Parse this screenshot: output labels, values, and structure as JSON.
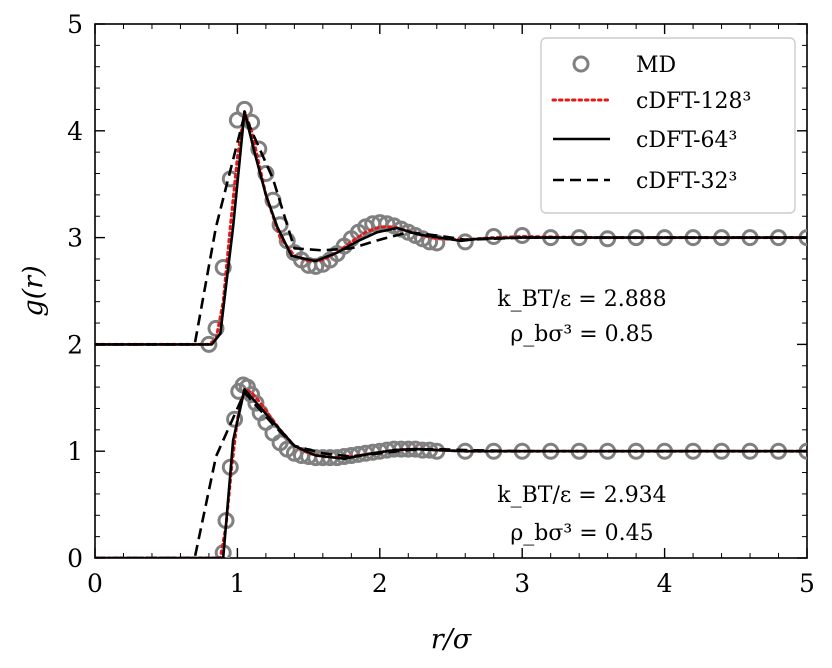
{
  "chart_data": {
    "type": "line",
    "xlabel": "r/σ",
    "ylabel": "g(r)",
    "xlim": [
      0,
      5
    ],
    "ylim": [
      0,
      5
    ],
    "xticks": [
      "0",
      "1",
      "2",
      "3",
      "4",
      "5"
    ],
    "yticks": [
      "0",
      "1",
      "2",
      "3",
      "4",
      "5"
    ],
    "grid": false,
    "legend_position": "top-right",
    "colors": {
      "md": "#808080",
      "cdft_128": "#e31a1c",
      "cdft_64": "#000000",
      "cdft_32": "#000000"
    },
    "legend": [
      {
        "key": "md",
        "label": "MD",
        "style": "circle-marker"
      },
      {
        "key": "cdft_128",
        "label": "cDFT-128³",
        "style": "dotted"
      },
      {
        "key": "cdft_64",
        "label": "cDFT-64³",
        "style": "solid"
      },
      {
        "key": "cdft_32",
        "label": "cDFT-32³",
        "style": "dashed"
      }
    ],
    "annotations": [
      {
        "line1": "k_BT/ε = 2.888",
        "line2": "ρ_bσ³ = 0.85"
      },
      {
        "line1": "k_BT/ε = 2.934",
        "line2": "ρ_bσ³ = 0.45"
      }
    ],
    "panels": [
      {
        "name": "upper (offset +2)",
        "offset": 2,
        "md": {
          "x": [
            0.8,
            0.85,
            0.9,
            0.95,
            1.0,
            1.05,
            1.1,
            1.15,
            1.2,
            1.25,
            1.3,
            1.35,
            1.4,
            1.45,
            1.5,
            1.55,
            1.6,
            1.65,
            1.7,
            1.75,
            1.8,
            1.85,
            1.9,
            1.95,
            2.0,
            2.05,
            2.1,
            2.15,
            2.2,
            2.25,
            2.3,
            2.35,
            2.4,
            2.6,
            2.8,
            3.0,
            3.2,
            3.4,
            3.6,
            3.8,
            4.0,
            4.2,
            4.4,
            4.6,
            4.8,
            5.0
          ],
          "y": [
            2.0,
            2.15,
            2.72,
            3.55,
            4.1,
            4.2,
            4.08,
            3.83,
            3.6,
            3.35,
            3.12,
            2.97,
            2.86,
            2.79,
            2.74,
            2.73,
            2.75,
            2.79,
            2.85,
            2.92,
            2.99,
            3.05,
            3.1,
            3.13,
            3.14,
            3.13,
            3.11,
            3.08,
            3.05,
            3.02,
            2.99,
            2.96,
            2.95,
            2.96,
            3.01,
            3.02,
            3.0,
            3.0,
            2.99,
            3.0,
            3.0,
            3.0,
            3.0,
            3.0,
            3.0,
            3.0
          ]
        },
        "cdft_128": {
          "x": [
            0,
            0.8,
            0.85,
            0.9,
            0.95,
            1.0,
            1.05,
            1.1,
            1.2,
            1.3,
            1.4,
            1.5,
            1.6,
            1.7,
            1.8,
            1.9,
            2.0,
            2.1,
            2.2,
            2.3,
            2.4,
            2.6,
            2.8,
            3.0,
            3.5,
            4.0,
            5.0
          ],
          "y": [
            2.0,
            2.0,
            2.05,
            2.4,
            3.1,
            3.75,
            4.18,
            4.0,
            3.4,
            3.0,
            2.83,
            2.78,
            2.79,
            2.86,
            2.96,
            3.05,
            3.1,
            3.1,
            3.06,
            3.02,
            2.99,
            2.98,
            3.0,
            3.01,
            3.0,
            3.0,
            3.0
          ]
        },
        "cdft_64": {
          "x": [
            0,
            0.82,
            0.88,
            0.97,
            1.05,
            1.12,
            1.2,
            1.28,
            1.38,
            1.55,
            1.7,
            1.85,
            1.98,
            2.12,
            2.27,
            2.42,
            2.57,
            2.7,
            3.0,
            3.5,
            4.0,
            5.0
          ],
          "y": [
            2.0,
            2.0,
            2.1,
            3.1,
            4.18,
            3.8,
            3.4,
            3.1,
            2.83,
            2.78,
            2.86,
            2.97,
            3.05,
            3.09,
            3.03,
            3.0,
            2.97,
            2.99,
            3.0,
            3.0,
            3.0,
            3.0
          ]
        },
        "cdft_32": {
          "x": [
            0,
            0.7,
            0.85,
            1.05,
            1.25,
            1.4,
            1.6,
            1.8,
            2.0,
            2.2,
            2.4,
            2.6,
            2.8,
            3.0,
            3.5,
            4.0,
            5.0
          ],
          "y": [
            2.0,
            2.0,
            3.1,
            4.15,
            3.55,
            2.9,
            2.88,
            2.9,
            2.98,
            3.05,
            3.02,
            2.98,
            2.99,
            3.0,
            3.0,
            3.0,
            3.0
          ]
        }
      },
      {
        "name": "lower (offset 0)",
        "offset": 0,
        "md": {
          "x": [
            0.9,
            0.92,
            0.95,
            0.98,
            1.01,
            1.04,
            1.07,
            1.1,
            1.13,
            1.16,
            1.2,
            1.25,
            1.3,
            1.35,
            1.4,
            1.45,
            1.5,
            1.55,
            1.6,
            1.65,
            1.7,
            1.75,
            1.8,
            1.85,
            1.9,
            1.95,
            2.0,
            2.05,
            2.1,
            2.15,
            2.2,
            2.25,
            2.3,
            2.35,
            2.4,
            2.6,
            2.8,
            3.0,
            3.2,
            3.4,
            3.6,
            3.8,
            4.0,
            4.2,
            4.4,
            4.6,
            4.8,
            5.0
          ],
          "y": [
            0.05,
            0.35,
            0.85,
            1.3,
            1.56,
            1.62,
            1.6,
            1.53,
            1.45,
            1.36,
            1.27,
            1.17,
            1.08,
            1.02,
            0.98,
            0.96,
            0.95,
            0.94,
            0.94,
            0.94,
            0.94,
            0.95,
            0.96,
            0.97,
            0.98,
            0.99,
            1.0,
            1.01,
            1.02,
            1.02,
            1.02,
            1.02,
            1.01,
            1.01,
            1.0,
            1.0,
            1.0,
            1.0,
            1.0,
            1.0,
            1.0,
            1.0,
            1.0,
            1.0,
            1.0,
            1.0,
            1.0,
            1.0
          ]
        },
        "cdft_128": {
          "x": [
            0,
            0.88,
            0.92,
            0.96,
            1.0,
            1.05,
            1.1,
            1.15,
            1.2,
            1.3,
            1.4,
            1.5,
            1.6,
            1.7,
            1.8,
            1.9,
            2.0,
            2.1,
            2.2,
            2.3,
            2.4,
            2.6,
            3.0,
            3.5,
            4.0,
            5.0
          ],
          "y": [
            0.0,
            0.0,
            0.3,
            0.85,
            1.3,
            1.58,
            1.55,
            1.47,
            1.38,
            1.2,
            1.05,
            0.98,
            0.95,
            0.94,
            0.95,
            0.97,
            0.99,
            1.01,
            1.02,
            1.02,
            1.01,
            1.0,
            1.0,
            1.0,
            1.0,
            1.0
          ]
        },
        "cdft_64": {
          "x": [
            0,
            0.9,
            0.97,
            1.05,
            1.2,
            1.4,
            1.55,
            1.75,
            1.95,
            2.1,
            2.25,
            2.4,
            2.6,
            3.0,
            3.5,
            4.0,
            5.0
          ],
          "y": [
            0.0,
            0.0,
            1.1,
            1.58,
            1.35,
            1.05,
            0.96,
            0.93,
            0.98,
            1.01,
            1.02,
            1.01,
            1.0,
            1.0,
            1.0,
            1.0,
            1.0
          ]
        },
        "cdft_32": {
          "x": [
            0,
            0.7,
            0.85,
            1.05,
            1.25,
            1.4,
            1.6,
            1.8,
            2.0,
            2.2,
            2.4,
            2.6,
            3.0,
            3.5,
            4.0,
            5.0
          ],
          "y": [
            0.0,
            0.0,
            0.95,
            1.55,
            1.25,
            1.05,
            0.98,
            0.95,
            0.98,
            1.01,
            1.02,
            1.01,
            1.0,
            1.0,
            1.0,
            1.0
          ]
        }
      }
    ]
  }
}
